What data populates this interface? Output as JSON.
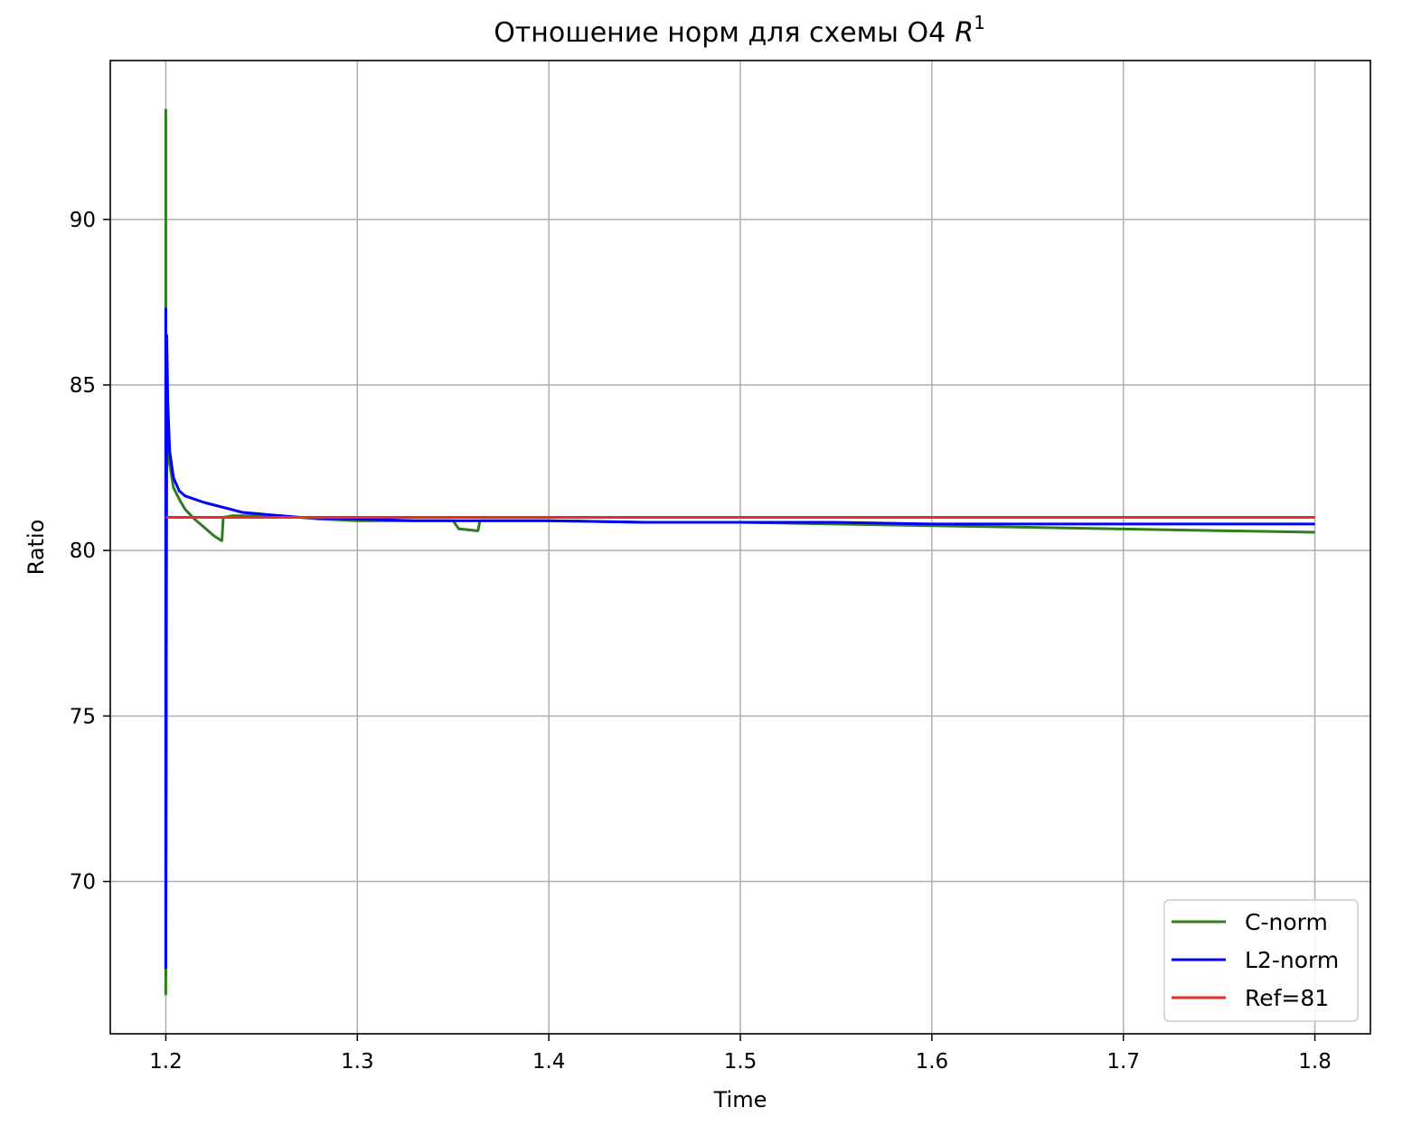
{
  "chart_data": {
    "type": "line",
    "title": "Отношение норм для схемы O4",
    "title_math": "R",
    "title_superscript": "1",
    "xlabel": "Time",
    "ylabel": "Ratio",
    "xlim": [
      1.171,
      1.829
    ],
    "ylim": [
      65.4,
      94.8
    ],
    "xticks": [
      1.2,
      1.3,
      1.4,
      1.5,
      1.6,
      1.7,
      1.8
    ],
    "xtick_labels": [
      "1.2",
      "1.3",
      "1.4",
      "1.5",
      "1.6",
      "1.7",
      "1.8"
    ],
    "yticks": [
      70,
      75,
      80,
      85,
      90
    ],
    "ytick_labels": [
      "70",
      "75",
      "80",
      "85",
      "90"
    ],
    "grid": true,
    "legend_position": "lower right",
    "series": [
      {
        "name": "C-norm",
        "color": "#2e7d1e",
        "x": [
          1.2,
          1.2,
          1.2,
          1.2005,
          1.201,
          1.202,
          1.204,
          1.207,
          1.21,
          1.215,
          1.22,
          1.225,
          1.229,
          1.2293,
          1.23,
          1.235,
          1.24,
          1.25,
          1.26,
          1.27,
          1.28,
          1.3,
          1.33,
          1.35,
          1.353,
          1.354,
          1.362,
          1.363,
          1.364,
          1.37,
          1.4,
          1.45,
          1.5,
          1.55,
          1.6,
          1.65,
          1.7,
          1.75,
          1.8
        ],
        "y": [
          66.6,
          93.3,
          66.6,
          85.0,
          83.5,
          82.6,
          81.9,
          81.55,
          81.25,
          80.95,
          80.7,
          80.45,
          80.3,
          80.3,
          81.0,
          81.05,
          81.05,
          81.05,
          81.05,
          81.0,
          80.95,
          80.9,
          80.9,
          80.9,
          80.65,
          80.65,
          80.6,
          80.6,
          80.9,
          80.9,
          80.9,
          80.85,
          80.85,
          80.8,
          80.75,
          80.7,
          80.65,
          80.6,
          80.55
        ]
      },
      {
        "name": "L2-norm",
        "color": "#0000ff",
        "x": [
          1.2,
          1.2,
          1.2,
          1.2005,
          1.201,
          1.202,
          1.204,
          1.207,
          1.21,
          1.215,
          1.22,
          1.23,
          1.24,
          1.25,
          1.26,
          1.27,
          1.3,
          1.33,
          1.35,
          1.4,
          1.45,
          1.5,
          1.55,
          1.6,
          1.65,
          1.7,
          1.75,
          1.8
        ],
        "y": [
          67.4,
          87.3,
          67.4,
          86.5,
          84.5,
          83.0,
          82.2,
          81.8,
          81.65,
          81.55,
          81.45,
          81.3,
          81.15,
          81.1,
          81.05,
          81.0,
          80.95,
          80.9,
          80.9,
          80.9,
          80.85,
          80.85,
          80.85,
          80.8,
          80.8,
          80.8,
          80.8,
          80.8
        ]
      },
      {
        "name": "Ref=81",
        "color": "#ee2a24",
        "x": [
          1.2,
          1.8
        ],
        "y": [
          81,
          81
        ]
      }
    ]
  }
}
